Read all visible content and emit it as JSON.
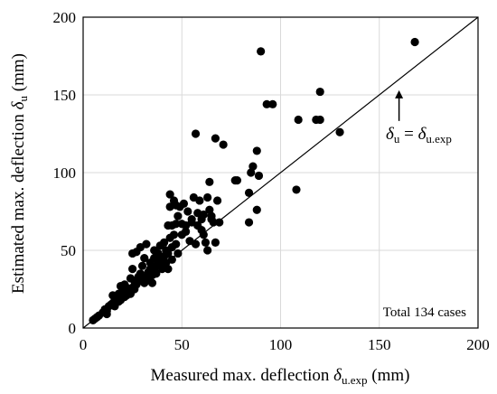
{
  "chart_data": {
    "type": "scatter",
    "xlabel": {
      "prefix": "Measured max. deflection ",
      "symbol": "δ",
      "subscript": "u.exp",
      "suffix": " (mm)"
    },
    "ylabel": {
      "prefix": "Estimated max. deflection ",
      "symbol": "δ",
      "subscript": "u",
      "suffix": " (mm)"
    },
    "xlim": [
      0,
      200
    ],
    "ylim": [
      0,
      200
    ],
    "x_ticks": [
      0,
      50,
      100,
      150,
      200
    ],
    "y_ticks": [
      0,
      50,
      100,
      150,
      200
    ],
    "grid": true,
    "reference_line": {
      "from": [
        0,
        0
      ],
      "to": [
        200,
        200
      ]
    },
    "annotation": {
      "lhs_symbol": "δ",
      "lhs_sub": "u",
      "equals": " = ",
      "rhs_symbol": "δ",
      "rhs_sub": "u.exp",
      "arrow_to": [
        160,
        153
      ]
    },
    "note": "Total 134 cases",
    "points": [
      [
        5,
        5
      ],
      [
        6,
        6
      ],
      [
        7,
        7
      ],
      [
        8,
        8
      ],
      [
        10,
        10
      ],
      [
        11,
        12
      ],
      [
        12,
        11
      ],
      [
        13,
        14
      ],
      [
        14,
        15
      ],
      [
        15,
        16
      ],
      [
        16,
        14
      ],
      [
        16,
        18
      ],
      [
        17,
        20
      ],
      [
        18,
        17
      ],
      [
        18,
        22
      ],
      [
        19,
        18
      ],
      [
        20,
        24
      ],
      [
        21,
        20
      ],
      [
        22,
        21
      ],
      [
        22,
        26
      ],
      [
        23,
        24
      ],
      [
        24,
        22
      ],
      [
        24,
        32
      ],
      [
        25,
        48
      ],
      [
        25,
        26
      ],
      [
        26,
        30
      ],
      [
        27,
        28
      ],
      [
        27,
        49
      ],
      [
        28,
        30
      ],
      [
        29,
        35
      ],
      [
        29,
        52
      ],
      [
        30,
        32
      ],
      [
        30,
        40
      ],
      [
        31,
        29
      ],
      [
        32,
        33
      ],
      [
        32,
        54
      ],
      [
        33,
        31
      ],
      [
        33,
        36
      ],
      [
        34,
        38
      ],
      [
        34,
        42
      ],
      [
        35,
        34
      ],
      [
        36,
        37
      ],
      [
        36,
        45
      ],
      [
        37,
        35
      ],
      [
        37,
        40
      ],
      [
        38,
        43
      ],
      [
        38,
        48
      ],
      [
        39,
        40
      ],
      [
        39,
        53
      ],
      [
        40,
        44
      ],
      [
        40,
        38
      ],
      [
        41,
        46
      ],
      [
        41,
        55
      ],
      [
        42,
        42
      ],
      [
        42,
        50
      ],
      [
        43,
        48
      ],
      [
        43,
        66
      ],
      [
        44,
        86
      ],
      [
        44,
        58
      ],
      [
        44,
        78
      ],
      [
        45,
        44
      ],
      [
        45,
        52
      ],
      [
        46,
        60
      ],
      [
        46,
        82
      ],
      [
        47,
        67
      ],
      [
        47,
        54
      ],
      [
        48,
        72
      ],
      [
        48,
        48
      ],
      [
        49,
        78
      ],
      [
        50,
        67
      ],
      [
        51,
        80
      ],
      [
        52,
        62
      ],
      [
        53,
        75
      ],
      [
        54,
        56
      ],
      [
        55,
        68
      ],
      [
        56,
        84
      ],
      [
        57,
        125
      ],
      [
        57,
        54
      ],
      [
        58,
        66
      ],
      [
        59,
        82
      ],
      [
        60,
        70
      ],
      [
        61,
        60
      ],
      [
        62,
        55
      ],
      [
        63,
        50
      ],
      [
        64,
        76
      ],
      [
        64,
        94
      ],
      [
        65,
        70
      ],
      [
        66,
        68
      ],
      [
        67,
        122
      ],
      [
        68,
        82
      ],
      [
        69,
        68
      ],
      [
        71,
        118
      ],
      [
        77,
        95
      ],
      [
        78,
        95
      ],
      [
        84,
        68
      ],
      [
        84,
        87
      ],
      [
        85,
        100
      ],
      [
        86,
        104
      ],
      [
        88,
        76
      ],
      [
        88,
        114
      ],
      [
        89,
        98
      ],
      [
        90,
        178
      ],
      [
        93,
        144
      ],
      [
        96,
        144
      ],
      [
        108,
        89
      ],
      [
        109,
        134
      ],
      [
        118,
        134
      ],
      [
        120,
        134
      ],
      [
        120,
        152
      ],
      [
        130,
        126
      ],
      [
        168,
        184
      ],
      [
        15,
        21
      ],
      [
        19,
        27
      ],
      [
        25,
        38
      ],
      [
        28,
        33
      ],
      [
        31,
        45
      ],
      [
        35,
        29
      ],
      [
        39,
        45
      ],
      [
        43,
        38
      ],
      [
        45,
        66
      ],
      [
        47,
        79
      ],
      [
        50,
        60
      ],
      [
        55,
        70
      ],
      [
        58,
        74
      ],
      [
        61,
        73
      ],
      [
        63,
        84
      ],
      [
        65,
        72
      ],
      [
        67,
        55
      ],
      [
        12,
        9
      ],
      [
        21,
        28
      ],
      [
        26,
        25
      ],
      [
        36,
        50
      ],
      [
        52,
        66
      ],
      [
        60,
        63
      ]
    ]
  }
}
